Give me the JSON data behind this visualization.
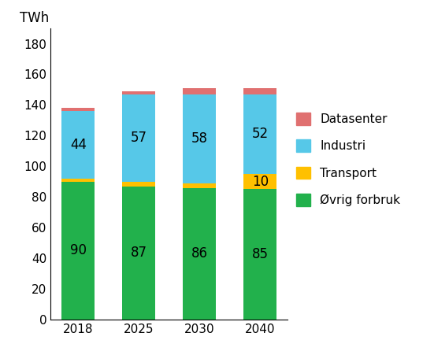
{
  "categories": [
    "2018",
    "2025",
    "2030",
    "2040"
  ],
  "ovrig_forbruk": [
    90,
    87,
    86,
    85
  ],
  "transport": [
    2,
    3,
    3,
    10
  ],
  "industri": [
    44,
    57,
    58,
    52
  ],
  "datasenter": [
    2,
    2,
    4,
    4
  ],
  "ovrig_color": "#22b14c",
  "transport_color": "#ffc000",
  "industri_color": "#56c8e8",
  "datasenter_color": "#e07070",
  "ylabel": "TWh",
  "ylim": [
    0,
    190
  ],
  "yticks": [
    0,
    20,
    40,
    60,
    80,
    100,
    120,
    140,
    160,
    180
  ],
  "legend_labels": [
    "Datasenter",
    "Industri",
    "Transport",
    "Øvrig forbruk"
  ],
  "bar_width": 0.55,
  "label_fontsize": 12,
  "axis_fontsize": 11,
  "legend_fontsize": 11
}
